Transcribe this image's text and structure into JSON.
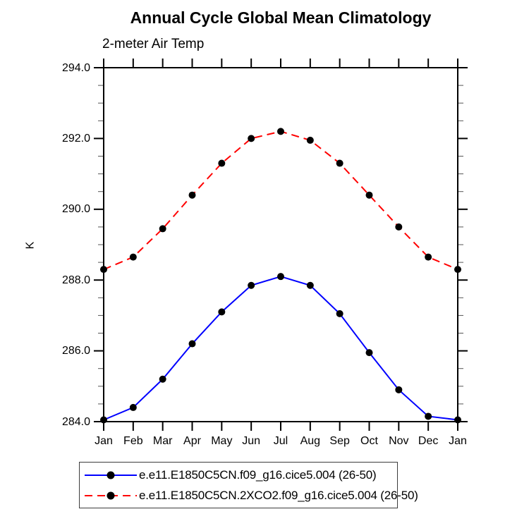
{
  "chart_data": {
    "type": "line",
    "title": "Annual Cycle Global Mean Climatology",
    "subtitle": "2-meter Air Temp",
    "ylabel": "K",
    "xlabel": "",
    "categories": [
      "Jan",
      "Feb",
      "Mar",
      "Apr",
      "May",
      "Jun",
      "Jul",
      "Aug",
      "Sep",
      "Oct",
      "Nov",
      "Dec",
      "Jan"
    ],
    "ylim": [
      284.0,
      294.0
    ],
    "ytick_values": [
      284,
      286,
      288,
      290,
      292,
      294
    ],
    "ytick_labels": [
      "284.0",
      "286.0",
      "288.0",
      "290.0",
      "292.0",
      "294.0"
    ],
    "ytick_minor_step": 0.5,
    "grid": false,
    "legend_position": "bottom",
    "axis_color": "#000000",
    "marker_color": "#000000",
    "series": [
      {
        "label": "e.e11.E1850C5CN.f09_g16.cice5.004 (26-50)",
        "color": "#0000ff",
        "line_style": "solid",
        "dash": "",
        "marker": "filled-circle",
        "values": [
          284.05,
          284.4,
          285.2,
          286.2,
          287.1,
          287.85,
          288.1,
          287.85,
          287.05,
          285.95,
          284.9,
          284.15,
          284.05
        ]
      },
      {
        "label": "e.e11.E1850C5CN.2XCO2.f09_g16.cice5.004 (26-50)",
        "color": "#ff0000",
        "line_style": "dashed",
        "dash": "11,7",
        "marker": "filled-circle",
        "values": [
          288.3,
          288.65,
          289.45,
          290.4,
          291.3,
          292.0,
          292.2,
          291.95,
          291.3,
          290.4,
          289.5,
          288.65,
          288.3
        ]
      }
    ]
  }
}
